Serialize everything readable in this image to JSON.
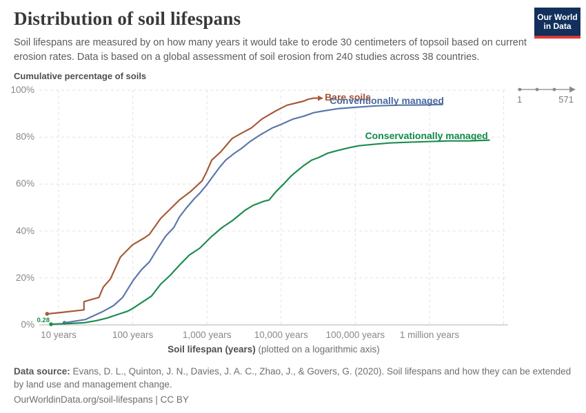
{
  "header": {
    "title": "Distribution of soil lifespans",
    "subtitle": "Soil lifespans are measured by on how many years it would take to erode 30 centimeters of topsoil based on current erosion rates. Data is based on a global assessment of soil erosion from 240 studies across 38 countries."
  },
  "logo": {
    "line1": "Our World",
    "line2": "in Data",
    "bg": "#12305B",
    "accent": "#DC3A32"
  },
  "range_indicator": {
    "start": "1",
    "end": "571"
  },
  "chart_data": {
    "type": "line",
    "title": "Distribution of soil lifespans",
    "ylabel": "Cumulative percentage of soils",
    "xlabel_bold": "Soil lifespan (years)",
    "xlabel_rest": " (plotted on a logarithmic axis)",
    "x_scale": "log",
    "grid": true,
    "ylim": [
      0,
      100
    ],
    "xlim_years": [
      5.5,
      11500000
    ],
    "colors": {
      "grid": "#e2e2e2",
      "baseline": "#cccccc",
      "tick_text": "#888888"
    },
    "y_ticks": [
      {
        "label": "0%",
        "pct": 0
      },
      {
        "label": "20%",
        "pct": 20
      },
      {
        "label": "40%",
        "pct": 40
      },
      {
        "label": "60%",
        "pct": 60
      },
      {
        "label": "80%",
        "pct": 80
      },
      {
        "label": "100%",
        "pct": 100
      }
    ],
    "x_ticks": [
      {
        "label": "10 years",
        "years": 10
      },
      {
        "label": "100 years",
        "years": 100
      },
      {
        "label": "1,000 years",
        "years": 1000
      },
      {
        "label": "10,000 years",
        "years": 10000
      },
      {
        "label": "100,000 years",
        "years": 100000
      },
      {
        "label": "1 million years",
        "years": 1000000
      }
    ],
    "x_grid_extra_years": [
      10000000
    ],
    "series": [
      {
        "name": "Bare soils",
        "color": "#A55A37",
        "label_color": "#A5502C",
        "start_dot": true,
        "end_arrow": true,
        "label": {
          "align": "left",
          "dx": 16,
          "dy": -10
        },
        "points": [
          [
            7,
            4.7
          ],
          [
            11,
            5.3
          ],
          [
            22,
            6.4
          ],
          [
            22,
            9.9
          ],
          [
            35,
            11.7
          ],
          [
            40,
            16.1
          ],
          [
            50,
            19.6
          ],
          [
            68,
            28.9
          ],
          [
            100,
            34.2
          ],
          [
            144,
            37.1
          ],
          [
            168,
            38.6
          ],
          [
            237,
            45.3
          ],
          [
            307,
            48.8
          ],
          [
            424,
            53.2
          ],
          [
            611,
            57.0
          ],
          [
            860,
            61.4
          ],
          [
            1000,
            65.5
          ],
          [
            1160,
            70.2
          ],
          [
            1530,
            73.7
          ],
          [
            2200,
            79.5
          ],
          [
            2900,
            81.6
          ],
          [
            4000,
            84.0
          ],
          [
            5500,
            87.7
          ],
          [
            8500,
            91.2
          ],
          [
            12000,
            93.6
          ],
          [
            20000,
            95.3
          ],
          [
            23000,
            96.1
          ],
          [
            27500,
            96.6
          ]
        ]
      },
      {
        "name": "Conventionally managed",
        "color": "#5C77AB",
        "label_color": "#4A699E",
        "start_dot": true,
        "end_arrow": false,
        "label": {
          "align": "right",
          "dx": 2,
          "dy": -14
        },
        "points": [
          [
            12,
            0.9
          ],
          [
            23,
            2.3
          ],
          [
            40,
            5.8
          ],
          [
            55,
            8.2
          ],
          [
            73,
            11.7
          ],
          [
            100,
            18.7
          ],
          [
            130,
            23.4
          ],
          [
            168,
            26.9
          ],
          [
            213,
            32.2
          ],
          [
            276,
            37.7
          ],
          [
            357,
            41.5
          ],
          [
            424,
            45.9
          ],
          [
            524,
            49.7
          ],
          [
            678,
            53.8
          ],
          [
            800,
            56.1
          ],
          [
            990,
            59.6
          ],
          [
            1160,
            62.6
          ],
          [
            1470,
            67.0
          ],
          [
            1790,
            70.2
          ],
          [
            2340,
            73.1
          ],
          [
            2900,
            75.1
          ],
          [
            3800,
            78.1
          ],
          [
            5250,
            81.0
          ],
          [
            7580,
            83.9
          ],
          [
            10000,
            85.4
          ],
          [
            14500,
            87.7
          ],
          [
            20000,
            88.9
          ],
          [
            27500,
            90.4
          ],
          [
            38000,
            91.2
          ],
          [
            58000,
            92.1
          ],
          [
            100000,
            92.7
          ],
          [
            190000,
            93.3
          ],
          [
            360000,
            93.6
          ],
          [
            800000,
            93.7
          ],
          [
            1500000,
            93.9
          ]
        ]
      },
      {
        "name": "Conservationally managed",
        "color": "#1D8C4E",
        "label_color": "#0E8A46",
        "start_dot": true,
        "end_arrow": false,
        "start_label": "0.28",
        "label": {
          "align": "right",
          "dx": -2,
          "dy": -15
        },
        "points": [
          [
            7.9,
            0.28
          ],
          [
            14,
            0.6
          ],
          [
            22,
            0.9
          ],
          [
            32,
            1.8
          ],
          [
            45,
            2.9
          ],
          [
            62,
            4.4
          ],
          [
            85,
            5.8
          ],
          [
            100,
            7.0
          ],
          [
            130,
            9.4
          ],
          [
            179,
            12.3
          ],
          [
            237,
            17.3
          ],
          [
            319,
            21.1
          ],
          [
            424,
            25.4
          ],
          [
            581,
            29.8
          ],
          [
            800,
            32.7
          ],
          [
            1160,
            37.7
          ],
          [
            1600,
            41.5
          ],
          [
            2200,
            44.4
          ],
          [
            3250,
            48.8
          ],
          [
            4180,
            50.9
          ],
          [
            5770,
            52.6
          ],
          [
            6870,
            53.2
          ],
          [
            8480,
            56.7
          ],
          [
            10700,
            59.9
          ],
          [
            13700,
            63.5
          ],
          [
            16300,
            65.5
          ],
          [
            20000,
            67.8
          ],
          [
            25800,
            70.2
          ],
          [
            32000,
            71.3
          ],
          [
            42000,
            73.1
          ],
          [
            58000,
            74.3
          ],
          [
            80000,
            75.4
          ],
          [
            110000,
            76.3
          ],
          [
            170000,
            76.9
          ],
          [
            290000,
            77.5
          ],
          [
            500000,
            77.8
          ],
          [
            950000,
            78.1
          ],
          [
            1800000,
            78.4
          ],
          [
            3400000,
            78.4
          ],
          [
            6400000,
            78.7
          ]
        ]
      }
    ]
  },
  "footer": {
    "source_label": "Data source:",
    "source_text": " Evans, D. L., Quinton, J. N., Davies, J. A. C., Zhao, J., & Govers, G. (2020). Soil lifespans and how they can be extended by land use and management change.",
    "link_line": "OurWorldinData.org/soil-lifespans | CC BY"
  }
}
